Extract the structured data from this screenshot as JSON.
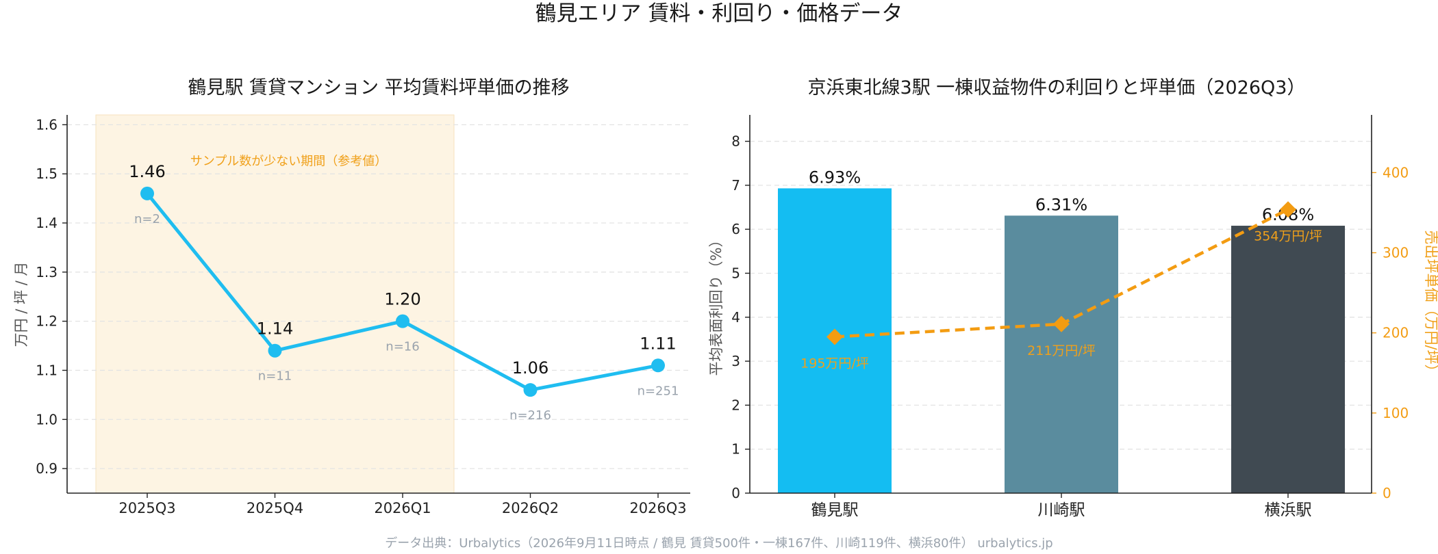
{
  "suptitle": "鶴見エリア 賃料・利回り・価格データ",
  "footer": "データ出典：Urbalytics（2026年9月11日時点 / 鶴見 賃貸500件・一棟167件、川崎119件、横浜80件）  urbalytics.jp",
  "colors": {
    "line": "#1fbdf0",
    "shade": "#fdf4e3",
    "orange": "#f39c12",
    "bars": [
      "#14bdf2",
      "#5a8c9e",
      "#404a52"
    ],
    "n_label": "#9aa3ad"
  },
  "chart_data": [
    {
      "type": "line",
      "title": "鶴見駅 賃貸マンション 平均賃料坪単価の推移",
      "xlabel": "",
      "ylabel": "万円 / 坪 / 月",
      "categories": [
        "2025Q3",
        "2025Q4",
        "2026Q1",
        "2026Q2",
        "2026Q3"
      ],
      "series": [
        {
          "values": [
            1.46,
            1.14,
            1.2,
            1.06,
            1.11
          ],
          "value_labels": [
            "1.46",
            "1.14",
            "1.20",
            "1.06",
            "1.11"
          ],
          "sample_sizes": [
            "n=2",
            "n=11",
            "n=16",
            "n=216",
            "n=251"
          ]
        }
      ],
      "ylim": [
        0.85,
        1.62
      ],
      "yticks": [
        "0.9",
        "1.0",
        "1.1",
        "1.2",
        "1.3",
        "1.4",
        "1.5",
        "1.6"
      ],
      "shaded_region": {
        "from_category": "2025Q3",
        "to_category": "2026Q1",
        "label": "サンプル数が少ない期間（参考値）"
      },
      "grid": "y-dashed"
    },
    {
      "type": "bar",
      "title": "京浜東北線3駅 一棟収益物件の利回りと坪単価（2026Q3）",
      "categories": [
        "鶴見駅",
        "川崎駅",
        "横浜駅"
      ],
      "series": [
        {
          "kind": "bar",
          "axis": "left",
          "values": [
            6.93,
            6.31,
            6.08
          ],
          "value_labels": [
            "6.93%",
            "6.31%",
            "6.08%"
          ]
        },
        {
          "kind": "line-dashed",
          "axis": "right",
          "marker": "diamond",
          "values": [
            195,
            211,
            354
          ],
          "value_labels": [
            "195万円/坪",
            "211万円/坪",
            "354万円/坪"
          ]
        }
      ],
      "ylabel_left": "平均表面利回り（%）",
      "ylabel_right": "売出坪単価（万円/坪）",
      "ylim_left": [
        0,
        8.6
      ],
      "yticks_left": [
        "0",
        "1",
        "2",
        "3",
        "4",
        "5",
        "6",
        "7",
        "8"
      ],
      "ylim_right": [
        0,
        472
      ],
      "yticks_right": [
        "0",
        "100",
        "200",
        "300",
        "400"
      ],
      "grid": "y-dashed"
    }
  ]
}
